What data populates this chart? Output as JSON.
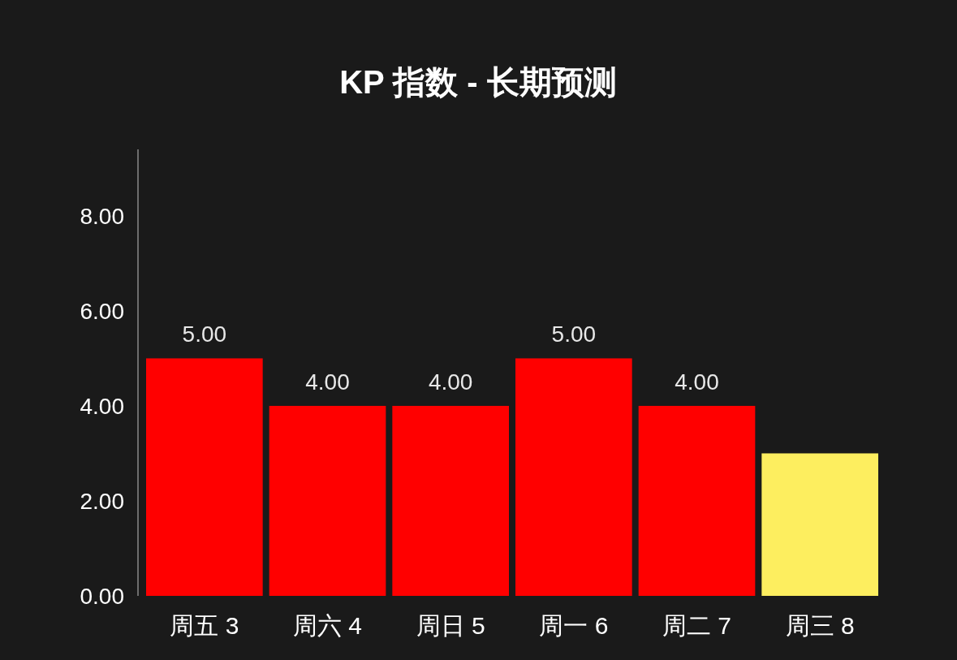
{
  "chart_data": {
    "type": "bar",
    "title": "KP 指数 - 长期预测",
    "categories": [
      "周五 3",
      "周六 4",
      "周日 5",
      "周一 6",
      "周二 7",
      "周三 8"
    ],
    "values": [
      5,
      4,
      4,
      5,
      4,
      3
    ],
    "colors": [
      "#ff0000",
      "#ff0000",
      "#ff0000",
      "#ff0000",
      "#ff0000",
      "#fdee5f"
    ],
    "ylim": [
      0,
      9.4
    ],
    "yticks": [
      {
        "value": 0,
        "label": "0.00"
      },
      {
        "value": 2,
        "label": "2.00"
      },
      {
        "value": 4,
        "label": "4.00"
      },
      {
        "value": 6,
        "label": "6.00"
      },
      {
        "value": 8,
        "label": "8.00"
      }
    ],
    "value_labels": [
      "5.00",
      "4.00",
      "4.00",
      "5.00",
      "4.00",
      null
    ],
    "grid": false
  }
}
